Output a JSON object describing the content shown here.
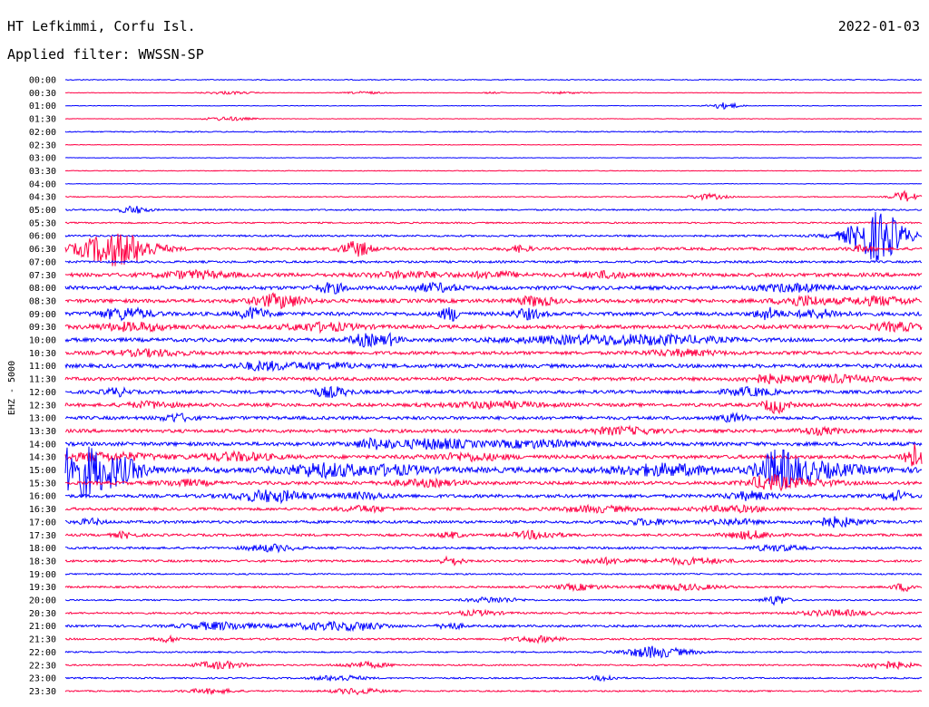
{
  "header": {
    "station": "HT Lefkimmi, Corfu Isl.",
    "date": "2022-01-03",
    "filter": "Applied filter: WWSSN-SP"
  },
  "chart_data": {
    "type": "line",
    "title": "HT Lefkimmi, Corfu Isl.",
    "ylabel": "EHZ - 5000",
    "colors": [
      "#0000ff",
      "#ff0044"
    ],
    "rows": [
      {
        "label": "00:00",
        "noise": 0.5,
        "events": []
      },
      {
        "label": "00:30",
        "noise": 0.3,
        "events": [
          [
            0.19,
            0.02,
            1.5
          ],
          [
            0.35,
            0.015,
            1.3
          ],
          [
            0.5,
            0.01,
            0.8
          ],
          [
            0.58,
            0.02,
            1.0
          ]
        ]
      },
      {
        "label": "01:00",
        "noise": 0.3,
        "events": [
          [
            0.77,
            0.012,
            3.5
          ]
        ]
      },
      {
        "label": "01:30",
        "noise": 0.3,
        "events": [
          [
            0.19,
            0.02,
            2.0
          ]
        ]
      },
      {
        "label": "02:00",
        "noise": 0.6,
        "events": []
      },
      {
        "label": "02:30",
        "noise": 0.3,
        "events": []
      },
      {
        "label": "03:00",
        "noise": 0.3,
        "events": []
      },
      {
        "label": "03:30",
        "noise": 0.4,
        "events": []
      },
      {
        "label": "04:00",
        "noise": 0.3,
        "events": []
      },
      {
        "label": "04:30",
        "noise": 0.5,
        "events": [
          [
            0.75,
            0.015,
            3.0
          ],
          [
            0.98,
            0.01,
            6.0
          ]
        ]
      },
      {
        "label": "05:00",
        "noise": 0.8,
        "events": [
          [
            0.08,
            0.012,
            4.0
          ]
        ]
      },
      {
        "label": "05:30",
        "noise": 0.8,
        "events": []
      },
      {
        "label": "06:00",
        "noise": 1.0,
        "events": [
          [
            0.95,
            0.02,
            22.0
          ],
          [
            0.94,
            0.03,
            6.0
          ]
        ]
      },
      {
        "label": "06:30",
        "noise": 1.5,
        "events": [
          [
            0.06,
            0.03,
            18.0
          ],
          [
            0.34,
            0.012,
            8.0
          ],
          [
            0.53,
            0.01,
            3.0
          ],
          [
            0.93,
            0.01,
            3.0
          ]
        ]
      },
      {
        "label": "07:00",
        "noise": 1.2,
        "events": []
      },
      {
        "label": "07:30",
        "noise": 2.0,
        "events": [
          [
            0.15,
            0.03,
            3.5
          ],
          [
            0.4,
            0.03,
            3.0
          ],
          [
            0.5,
            0.02,
            3.0
          ],
          [
            0.63,
            0.02,
            3.0
          ]
        ]
      },
      {
        "label": "08:00",
        "noise": 2.0,
        "events": [
          [
            0.31,
            0.012,
            5.0
          ],
          [
            0.43,
            0.02,
            4.0
          ],
          [
            0.85,
            0.03,
            3.5
          ]
        ]
      },
      {
        "label": "08:30",
        "noise": 2.0,
        "events": [
          [
            0.25,
            0.02,
            7.0
          ],
          [
            0.55,
            0.015,
            5.0
          ],
          [
            0.86,
            0.02,
            5.0
          ],
          [
            0.95,
            0.03,
            4.0
          ]
        ]
      },
      {
        "label": "09:00",
        "noise": 2.0,
        "events": [
          [
            0.07,
            0.02,
            6.0
          ],
          [
            0.22,
            0.012,
            6.0
          ],
          [
            0.45,
            0.008,
            7.0
          ],
          [
            0.54,
            0.012,
            5.0
          ],
          [
            0.82,
            0.01,
            6.0
          ],
          [
            0.88,
            0.02,
            4.0
          ]
        ]
      },
      {
        "label": "09:30",
        "noise": 2.0,
        "events": [
          [
            0.08,
            0.03,
            4.0
          ],
          [
            0.3,
            0.03,
            4.0
          ],
          [
            0.97,
            0.02,
            4.0
          ]
        ]
      },
      {
        "label": "10:00",
        "noise": 2.0,
        "events": [
          [
            0.35,
            0.012,
            6.0
          ],
          [
            0.38,
            0.008,
            5.0
          ],
          [
            0.6,
            0.06,
            3.5
          ],
          [
            0.7,
            0.05,
            3.5
          ]
        ]
      },
      {
        "label": "10:30",
        "noise": 1.8,
        "events": [
          [
            0.1,
            0.03,
            3.0
          ],
          [
            0.72,
            0.03,
            3.0
          ]
        ]
      },
      {
        "label": "11:00",
        "noise": 2.0,
        "events": [
          [
            0.23,
            0.02,
            4.0
          ],
          [
            0.3,
            0.03,
            3.0
          ]
        ]
      },
      {
        "label": "11:30",
        "noise": 1.8,
        "events": [
          [
            0.82,
            0.02,
            4.0
          ],
          [
            0.9,
            0.03,
            3.5
          ]
        ]
      },
      {
        "label": "12:00",
        "noise": 1.8,
        "events": [
          [
            0.06,
            0.01,
            4.0
          ],
          [
            0.31,
            0.015,
            5.0
          ],
          [
            0.8,
            0.02,
            4.0
          ]
        ]
      },
      {
        "label": "12:30",
        "noise": 1.8,
        "events": [
          [
            0.1,
            0.02,
            3.0
          ],
          [
            0.5,
            0.04,
            3.0
          ],
          [
            0.83,
            0.01,
            8.0
          ]
        ]
      },
      {
        "label": "13:00",
        "noise": 1.8,
        "events": [
          [
            0.13,
            0.012,
            4.0
          ],
          [
            0.78,
            0.01,
            4.0
          ]
        ]
      },
      {
        "label": "13:30",
        "noise": 1.8,
        "events": [
          [
            0.65,
            0.03,
            3.5
          ],
          [
            0.88,
            0.02,
            3.0
          ]
        ]
      },
      {
        "label": "14:00",
        "noise": 2.0,
        "events": [
          [
            0.36,
            0.015,
            5.0
          ],
          [
            0.43,
            0.03,
            5.0
          ],
          [
            0.55,
            0.04,
            3.5
          ]
        ]
      },
      {
        "label": "14:30",
        "noise": 2.0,
        "events": [
          [
            0.05,
            0.04,
            4.0
          ],
          [
            0.2,
            0.03,
            4.0
          ],
          [
            0.47,
            0.03,
            3.5
          ],
          [
            0.99,
            0.008,
            14.0
          ]
        ]
      },
      {
        "label": "15:00",
        "noise": 3.0,
        "events": [
          [
            0.01,
            0.02,
            22.0
          ],
          [
            0.04,
            0.02,
            12.0
          ],
          [
            0.07,
            0.02,
            8.0
          ],
          [
            0.3,
            0.03,
            6.0
          ],
          [
            0.38,
            0.03,
            4.0
          ],
          [
            0.7,
            0.04,
            5.0
          ],
          [
            0.83,
            0.015,
            18.0
          ],
          [
            0.86,
            0.02,
            8.0
          ],
          [
            0.9,
            0.03,
            4.0
          ]
        ]
      },
      {
        "label": "15:30",
        "noise": 1.8,
        "events": [
          [
            0.14,
            0.02,
            3.0
          ],
          [
            0.42,
            0.03,
            3.0
          ],
          [
            0.82,
            0.015,
            7.0
          ],
          [
            0.86,
            0.03,
            3.5
          ]
        ]
      },
      {
        "label": "16:00",
        "noise": 1.8,
        "events": [
          [
            0.24,
            0.03,
            6.0
          ],
          [
            0.35,
            0.02,
            3.0
          ],
          [
            0.8,
            0.02,
            4.0
          ],
          [
            0.97,
            0.01,
            5.0
          ]
        ]
      },
      {
        "label": "16:30",
        "noise": 1.5,
        "events": [
          [
            0.35,
            0.02,
            3.0
          ],
          [
            0.62,
            0.03,
            3.0
          ],
          [
            0.78,
            0.03,
            3.0
          ]
        ]
      },
      {
        "label": "17:00",
        "noise": 1.5,
        "events": [
          [
            0.03,
            0.01,
            3.0
          ],
          [
            0.68,
            0.02,
            3.0
          ],
          [
            0.9,
            0.02,
            5.0
          ],
          [
            0.78,
            0.02,
            3.0
          ]
        ]
      },
      {
        "label": "17:30",
        "noise": 1.3,
        "events": [
          [
            0.07,
            0.01,
            3.0
          ],
          [
            0.45,
            0.01,
            3.0
          ],
          [
            0.55,
            0.02,
            4.0
          ],
          [
            0.8,
            0.02,
            4.0
          ]
        ]
      },
      {
        "label": "18:00",
        "noise": 1.2,
        "events": [
          [
            0.24,
            0.02,
            3.5
          ],
          [
            0.83,
            0.02,
            3.0
          ]
        ]
      },
      {
        "label": "18:30",
        "noise": 1.2,
        "events": [
          [
            0.45,
            0.01,
            4.0
          ],
          [
            0.63,
            0.02,
            3.0
          ],
          [
            0.73,
            0.03,
            3.0
          ]
        ]
      },
      {
        "label": "19:00",
        "noise": 0.8,
        "events": []
      },
      {
        "label": "19:30",
        "noise": 1.0,
        "events": [
          [
            0.6,
            0.02,
            3.0
          ],
          [
            0.72,
            0.03,
            3.0
          ],
          [
            0.98,
            0.01,
            4.0
          ]
        ]
      },
      {
        "label": "20:00",
        "noise": 0.8,
        "events": [
          [
            0.5,
            0.02,
            3.0
          ],
          [
            0.83,
            0.01,
            5.0
          ]
        ]
      },
      {
        "label": "20:30",
        "noise": 1.0,
        "events": [
          [
            0.48,
            0.02,
            2.5
          ],
          [
            0.9,
            0.03,
            3.0
          ]
        ]
      },
      {
        "label": "21:00",
        "noise": 1.2,
        "events": [
          [
            0.18,
            0.03,
            4.0
          ],
          [
            0.3,
            0.03,
            3.5
          ],
          [
            0.35,
            0.02,
            3.0
          ],
          [
            0.45,
            0.01,
            3.5
          ]
        ]
      },
      {
        "label": "21:30",
        "noise": 1.0,
        "events": [
          [
            0.12,
            0.01,
            3.0
          ],
          [
            0.55,
            0.02,
            3.0
          ]
        ]
      },
      {
        "label": "22:00",
        "noise": 0.8,
        "events": [
          [
            0.68,
            0.02,
            3.5
          ],
          [
            0.7,
            0.03,
            3.0
          ]
        ]
      },
      {
        "label": "22:30",
        "noise": 0.8,
        "events": [
          [
            0.18,
            0.02,
            4.0
          ],
          [
            0.35,
            0.02,
            3.0
          ],
          [
            0.96,
            0.02,
            4.0
          ]
        ]
      },
      {
        "label": "23:00",
        "noise": 0.8,
        "events": [
          [
            0.32,
            0.02,
            3.0
          ],
          [
            0.63,
            0.01,
            3.0
          ]
        ]
      },
      {
        "label": "23:30",
        "noise": 0.8,
        "events": [
          [
            0.17,
            0.02,
            2.5
          ],
          [
            0.34,
            0.02,
            3.0
          ]
        ]
      }
    ]
  }
}
